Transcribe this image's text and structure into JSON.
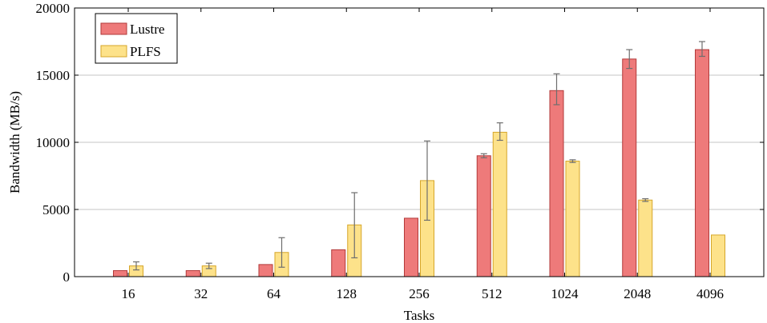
{
  "chart_data": {
    "type": "bar",
    "title": "",
    "xlabel": "Tasks",
    "ylabel": "Bandwidth (MB/s)",
    "ylim": [
      0,
      20000
    ],
    "yticks": [
      0,
      5000,
      10000,
      15000,
      20000
    ],
    "grid": true,
    "legend_position": "top-left",
    "categories": [
      "16",
      "32",
      "64",
      "128",
      "256",
      "512",
      "1024",
      "2048",
      "4096"
    ],
    "series": [
      {
        "name": "Lustre",
        "color": "#ee7a7a",
        "stroke": "#b23a3a",
        "values": [
          450,
          450,
          900,
          2000,
          4350,
          9000,
          13850,
          16200,
          16900
        ],
        "error_low": [
          null,
          null,
          null,
          null,
          null,
          8850,
          12800,
          15500,
          16400
        ],
        "error_high": [
          null,
          null,
          null,
          null,
          null,
          9150,
          15100,
          16900,
          17500
        ]
      },
      {
        "name": "PLFS",
        "color": "#fde28a",
        "stroke": "#d6a62a",
        "values": [
          800,
          800,
          1800,
          3850,
          7150,
          10750,
          8600,
          5700,
          3100
        ],
        "error_low": [
          500,
          600,
          700,
          1400,
          4200,
          10150,
          8500,
          5600,
          null
        ],
        "error_high": [
          1100,
          1000,
          2900,
          6250,
          10100,
          11450,
          8700,
          5800,
          null
        ]
      }
    ]
  }
}
